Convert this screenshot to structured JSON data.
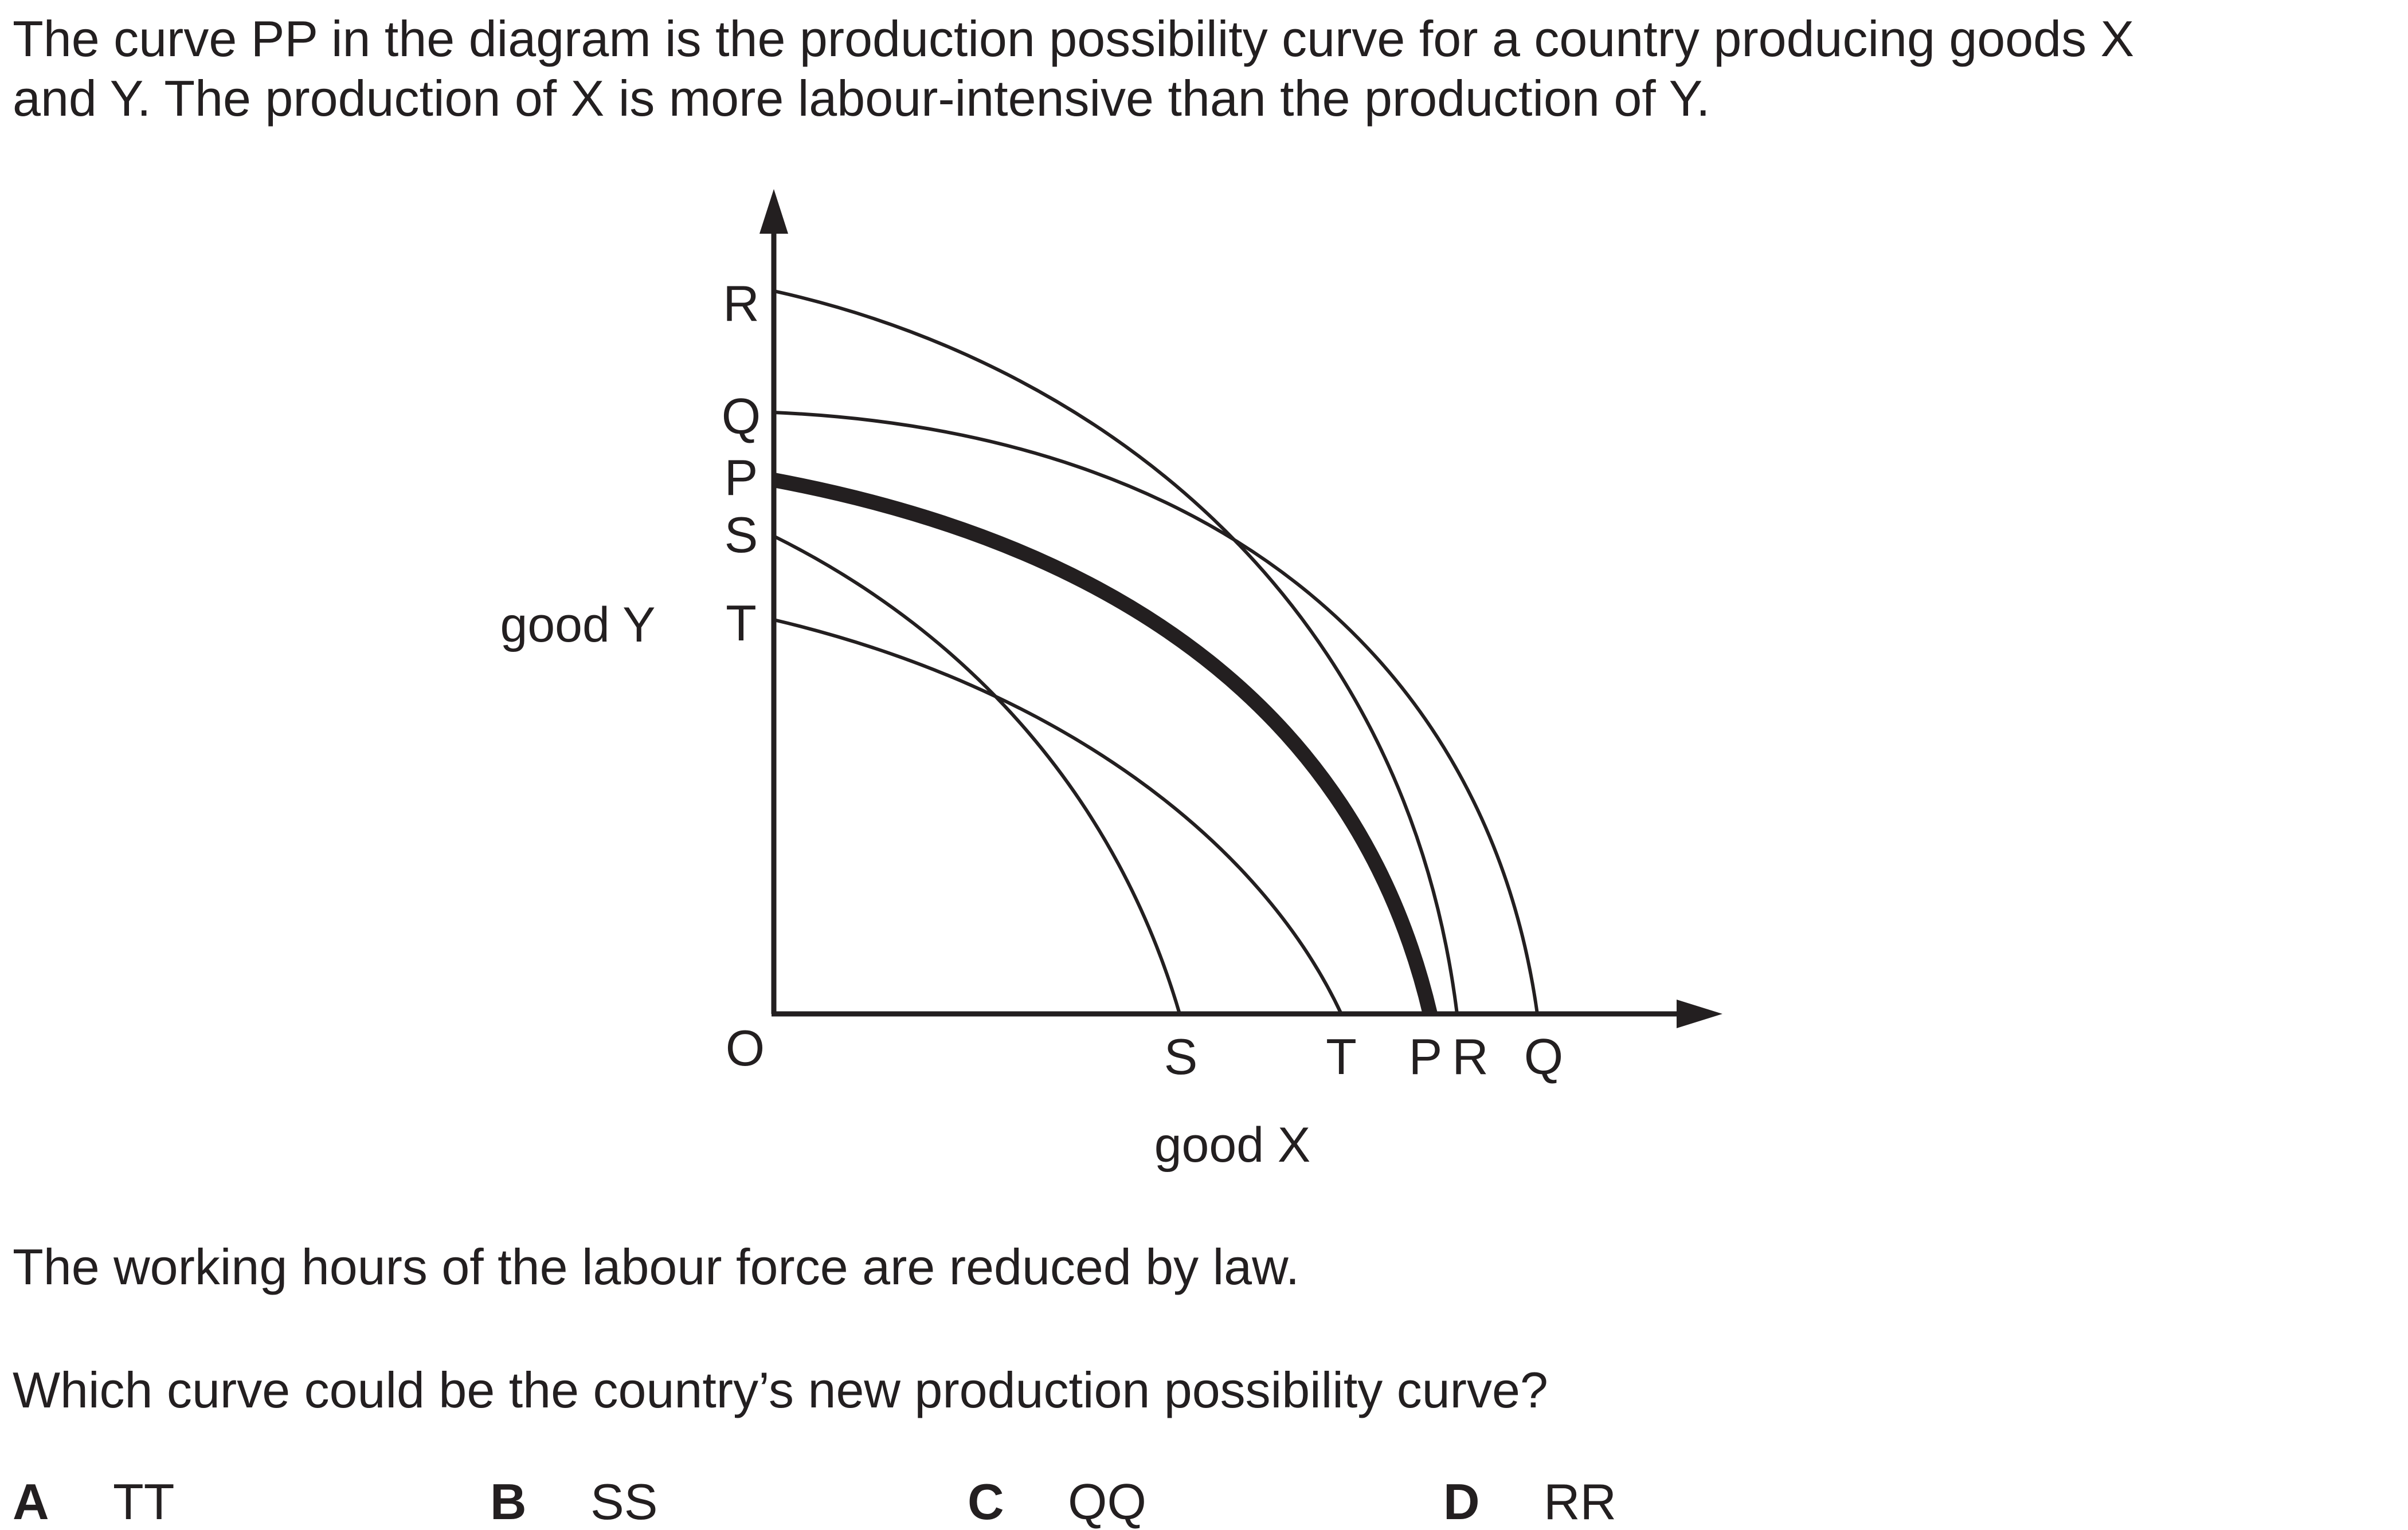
{
  "question": {
    "stem_line_1": "The curve PP in the diagram is the production possibility curve for a country producing goods X",
    "stem_line_2": "and Y. The production of X is more labour-intensive than the production of Y.",
    "statement": "The working hours of the labour force are reduced by law.",
    "prompt": "Which curve could be the country’s new production possibility curve?"
  },
  "diagram": {
    "y_axis_label": "good Y",
    "x_axis_label": "good X",
    "origin_label": "O",
    "y_intercept_labels": [
      "R",
      "Q",
      "P",
      "S",
      "T"
    ],
    "x_intercept_labels": [
      "S",
      "T",
      "P",
      "R",
      "Q"
    ],
    "curves": [
      {
        "name": "PP",
        "emphasis": "bold"
      },
      {
        "name": "QQ",
        "emphasis": "normal"
      },
      {
        "name": "RR",
        "emphasis": "normal"
      },
      {
        "name": "SS",
        "emphasis": "normal"
      },
      {
        "name": "TT",
        "emphasis": "normal"
      }
    ]
  },
  "options": [
    {
      "letter": "A",
      "answer": "TT"
    },
    {
      "letter": "B",
      "answer": "SS"
    },
    {
      "letter": "C",
      "answer": "QQ"
    },
    {
      "letter": "D",
      "answer": "RR"
    }
  ],
  "colors": {
    "ink": "#231f20",
    "background": "#ffffff"
  }
}
